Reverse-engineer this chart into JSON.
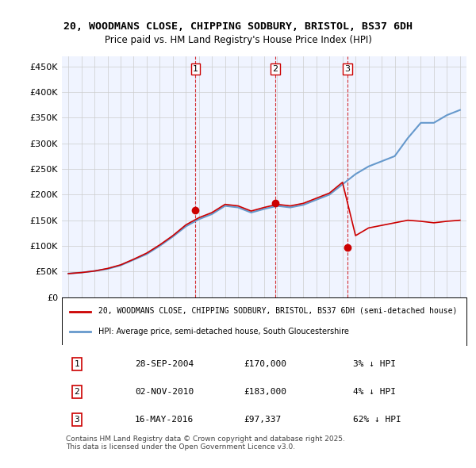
{
  "title": "20, WOODMANS CLOSE, CHIPPING SODBURY, BRISTOL, BS37 6DH",
  "subtitle": "Price paid vs. HM Land Registry's House Price Index (HPI)",
  "ylabel_ticks": [
    "£0",
    "£50K",
    "£100K",
    "£150K",
    "£200K",
    "£250K",
    "£300K",
    "£350K",
    "£400K",
    "£450K"
  ],
  "ytick_values": [
    0,
    50000,
    100000,
    150000,
    200000,
    250000,
    300000,
    350000,
    400000,
    450000
  ],
  "ylim": [
    0,
    470000
  ],
  "xlim_start": 1994.5,
  "xlim_end": 2025.5,
  "sale_dates_decimal": [
    2004.74,
    2010.84,
    2016.37
  ],
  "sale_prices": [
    170000,
    183000,
    97337
  ],
  "sale_labels": [
    "1",
    "2",
    "3"
  ],
  "red_line_color": "#cc0000",
  "blue_line_color": "#6699cc",
  "dashed_line_color": "#cc0000",
  "marker_color": "#cc0000",
  "background_color": "#f0f4ff",
  "grid_color": "#cccccc",
  "legend_line1": "20, WOODMANS CLOSE, CHIPPING SODBURY, BRISTOL, BS37 6DH (semi-detached house)",
  "legend_line2": "HPI: Average price, semi-detached house, South Gloucestershire",
  "table_rows": [
    {
      "num": "1",
      "date": "28-SEP-2004",
      "price": "£170,000",
      "vs_hpi": "3% ↓ HPI"
    },
    {
      "num": "2",
      "date": "02-NOV-2010",
      "price": "£183,000",
      "vs_hpi": "4% ↓ HPI"
    },
    {
      "num": "3",
      "date": "16-MAY-2016",
      "price": "£97,337",
      "vs_hpi": "62% ↓ HPI"
    }
  ],
  "footnote": "Contains HM Land Registry data © Crown copyright and database right 2025.\nThis data is licensed under the Open Government Licence v3.0.",
  "hpi_years": [
    1995,
    1996,
    1997,
    1998,
    1999,
    2000,
    2001,
    2002,
    2003,
    2004,
    2005,
    2006,
    2007,
    2008,
    2009,
    2010,
    2011,
    2012,
    2013,
    2014,
    2015,
    2016,
    2017,
    2018,
    2019,
    2020,
    2021,
    2022,
    2023,
    2024,
    2025
  ],
  "hpi_values": [
    46000,
    48000,
    51000,
    55000,
    62000,
    73000,
    84000,
    100000,
    118000,
    138000,
    152000,
    162000,
    178000,
    175000,
    165000,
    172000,
    178000,
    175000,
    180000,
    190000,
    200000,
    220000,
    240000,
    255000,
    265000,
    275000,
    310000,
    340000,
    340000,
    355000,
    365000
  ],
  "property_years": [
    1995,
    1996,
    1997,
    1998,
    1999,
    2000,
    2001,
    2002,
    2003,
    2004,
    2005,
    2006,
    2007,
    2008,
    2009,
    2010,
    2011,
    2012,
    2013,
    2014,
    2015,
    2016,
    2017,
    2018,
    2019,
    2020,
    2021,
    2022,
    2023,
    2024,
    2025
  ],
  "property_values": [
    46000,
    48000,
    51000,
    56000,
    63000,
    74000,
    86000,
    102000,
    120000,
    141000,
    155000,
    165000,
    181000,
    178000,
    168000,
    175000,
    181000,
    178000,
    183000,
    193000,
    203000,
    224000,
    120000,
    135000,
    140000,
    145000,
    150000,
    148000,
    145000,
    148000,
    150000
  ]
}
